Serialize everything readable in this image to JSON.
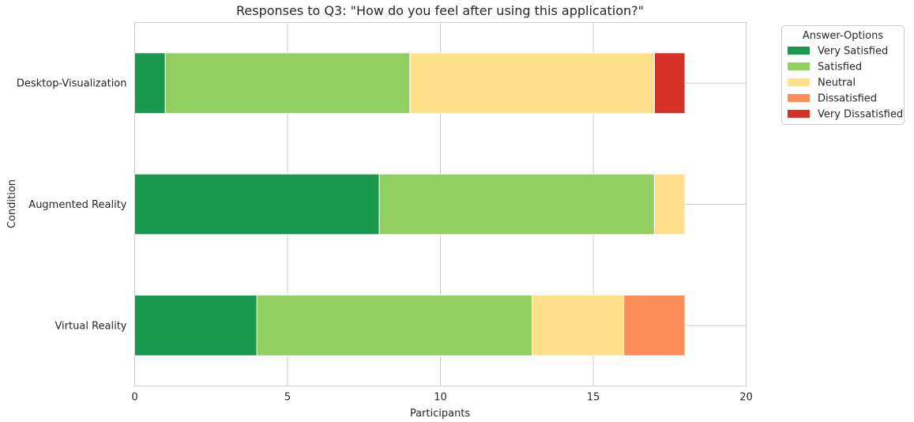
{
  "chart_data": {
    "type": "bar",
    "orientation": "horizontal",
    "stacked": true,
    "title": "Responses to Q3: \"How do you feel after using this application?\"",
    "xlabel": "Participants",
    "ylabel": "Condition",
    "xlim": [
      0,
      20
    ],
    "xticks": [
      "0",
      "5",
      "10",
      "15",
      "20"
    ],
    "grid": true,
    "legend_title": "Answer-Options",
    "legend_position": "outside-top-right",
    "categories": [
      "Desktop-Visualization",
      "Augmented Reality",
      "Virtual Reality"
    ],
    "series": [
      {
        "name": "Very Satisfied",
        "color": "#1a9850",
        "values": [
          1,
          8,
          4
        ]
      },
      {
        "name": "Satisfied",
        "color": "#91cf60",
        "values": [
          8,
          9,
          9
        ]
      },
      {
        "name": "Neutral",
        "color": "#fee08b",
        "values": [
          8,
          1,
          3
        ]
      },
      {
        "name": "Dissatisfied",
        "color": "#fc8d59",
        "values": [
          0,
          0,
          2
        ]
      },
      {
        "name": "Very Dissatisfied",
        "color": "#d73027",
        "values": [
          1,
          0,
          0
        ]
      }
    ]
  }
}
